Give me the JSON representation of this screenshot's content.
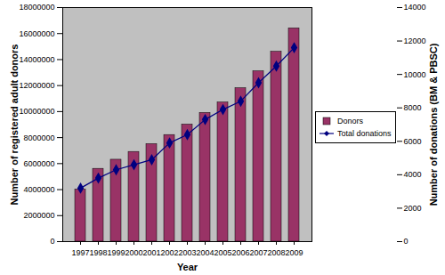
{
  "chart_data": {
    "type": "bar",
    "categories": [
      "1997",
      "1998",
      "1999",
      "2000",
      "2001",
      "2002",
      "2003",
      "2004",
      "2005",
      "2006",
      "2007",
      "2008",
      "2009"
    ],
    "x_label": "Year",
    "y_label": "Number of registered adult donors",
    "y2_label": "Number of donations (BM & PBSC)",
    "ylim": [
      0,
      18000000
    ],
    "yticks": [
      0,
      2000000,
      4000000,
      6000000,
      8000000,
      10000000,
      12000000,
      14000000,
      16000000,
      18000000
    ],
    "y2lim": [
      0,
      14000
    ],
    "y2ticks": [
      0,
      2000,
      4000,
      6000,
      8000,
      10000,
      12000,
      14000
    ],
    "legend": "right",
    "series": [
      {
        "name": "Donors",
        "type": "bar",
        "color": "#993366",
        "values": [
          4000000,
          5600000,
          6300000,
          6900000,
          7500000,
          8200000,
          9000000,
          9900000,
          10700000,
          11800000,
          13100000,
          14600000,
          16400000
        ]
      },
      {
        "name": "Total donations",
        "type": "line",
        "axis": "y2",
        "color": "#000080",
        "marker": "diamond",
        "values": [
          3200,
          3800,
          4300,
          4600,
          4900,
          5900,
          6400,
          7300,
          7900,
          8400,
          9500,
          10500,
          11600
        ]
      }
    ]
  }
}
